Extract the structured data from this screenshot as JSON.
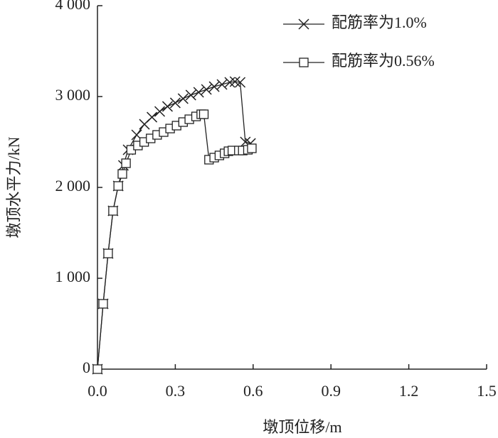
{
  "chart_data": {
    "type": "line",
    "x_label": "墩顶位移/m",
    "y_label": "墩顶水平力/kN",
    "xlim": [
      0,
      1.5
    ],
    "ylim": [
      0,
      4000
    ],
    "xticks": [
      {
        "value": 0,
        "label": "0.0"
      },
      0.3,
      0.6,
      0.9,
      1.2,
      1.5
    ],
    "yticks": [
      0,
      {
        "value": 1000,
        "label": "1 000"
      },
      {
        "value": 2000,
        "label": "2 000"
      },
      {
        "value": 3000,
        "label": "3 000"
      },
      {
        "value": 4000,
        "label": "4 000"
      }
    ],
    "legend": "top-right",
    "series": [
      {
        "name": "配筋率为1.0%",
        "color": "#222",
        "marker": "x",
        "x": [
          0,
          0.022,
          0.041,
          0.06,
          0.08,
          0.1,
          0.118,
          0.151,
          0.181,
          0.21,
          0.24,
          0.27,
          0.3,
          0.33,
          0.36,
          0.39,
          0.42,
          0.45,
          0.48,
          0.51,
          0.53,
          0.55,
          0.57,
          0.59
        ],
        "values": [
          0,
          719,
          1273,
          1742,
          2016,
          2242,
          2414,
          2578,
          2695,
          2773,
          2836,
          2891,
          2930,
          2977,
          3016,
          3047,
          3078,
          3109,
          3133,
          3156,
          3164,
          3156,
          2500,
          2484
        ]
      },
      {
        "name": "配筋率为0.56%",
        "color": "#222",
        "marker": "square",
        "x": [
          0,
          0.022,
          0.041,
          0.06,
          0.08,
          0.096,
          0.11,
          0.13,
          0.156,
          0.18,
          0.205,
          0.23,
          0.255,
          0.28,
          0.305,
          0.33,
          0.354,
          0.38,
          0.4,
          0.41,
          0.43,
          0.45,
          0.47,
          0.49,
          0.505,
          0.52,
          0.545,
          0.56,
          0.58,
          0.595
        ],
        "values": [
          0,
          719,
          1273,
          1742,
          2016,
          2148,
          2266,
          2414,
          2461,
          2500,
          2539,
          2578,
          2609,
          2648,
          2680,
          2719,
          2750,
          2781,
          2805,
          2805,
          2305,
          2328,
          2352,
          2375,
          2398,
          2406,
          2406,
          2406,
          2414,
          2430
        ]
      }
    ]
  }
}
